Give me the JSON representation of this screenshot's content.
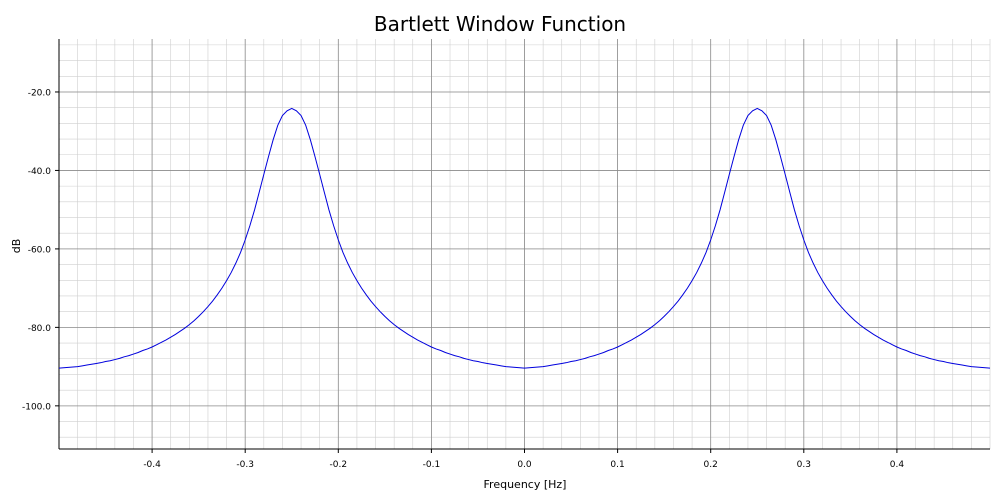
{
  "chart_data": {
    "type": "line",
    "title": "Bartlett Window Function",
    "xlabel": "Frequency [Hz]",
    "ylabel": "dB",
    "xlim": [
      -0.5,
      0.5
    ],
    "ylim": [
      -111,
      -6.5
    ],
    "xticks": [
      -0.4,
      -0.3,
      -0.2,
      -0.1,
      0.0,
      0.1,
      0.2,
      0.3,
      0.4
    ],
    "xtick_labels": [
      "-0.4",
      "-0.3",
      "-0.2",
      "-0.1",
      "0.0",
      "0.1",
      "0.2",
      "0.3",
      "0.4"
    ],
    "yticks": [
      -20,
      -40,
      -60,
      -80,
      -100
    ],
    "ytick_labels": [
      "-20.0",
      "-40.0",
      "-60.0",
      "-80.0",
      "-100.0"
    ],
    "grid": true,
    "minor_grid": true,
    "line_color": "#0000dd",
    "series": [
      {
        "x": [
          -0.5,
          -0.495,
          -0.49,
          -0.485,
          -0.48,
          -0.475,
          -0.47,
          -0.465,
          -0.46,
          -0.455,
          -0.45,
          -0.445,
          -0.44,
          -0.435,
          -0.43,
          -0.425,
          -0.42,
          -0.415,
          -0.41,
          -0.405,
          -0.4,
          -0.395,
          -0.39,
          -0.385,
          -0.38,
          -0.375,
          -0.37,
          -0.365,
          -0.36,
          -0.355,
          -0.35,
          -0.345,
          -0.34,
          -0.335,
          -0.33,
          -0.325,
          -0.32,
          -0.315,
          -0.31,
          -0.305,
          -0.3,
          -0.295,
          -0.29,
          -0.285,
          -0.28,
          -0.275,
          -0.27,
          -0.265,
          -0.26,
          -0.255,
          -0.25,
          -0.245,
          -0.24,
          -0.235,
          -0.23,
          -0.225,
          -0.22,
          -0.215,
          -0.21,
          -0.205,
          -0.2,
          -0.195,
          -0.19,
          -0.185,
          -0.18,
          -0.175,
          -0.17,
          -0.165,
          -0.16,
          -0.155,
          -0.15,
          -0.145,
          -0.14,
          -0.135,
          -0.13,
          -0.125,
          -0.12,
          -0.115,
          -0.11,
          -0.105,
          -0.1,
          -0.095,
          -0.09,
          -0.085,
          -0.08,
          -0.075,
          -0.07,
          -0.065,
          -0.06,
          -0.055,
          -0.05,
          -0.045,
          -0.04,
          -0.035,
          -0.03,
          -0.025,
          -0.02,
          -0.015,
          -0.01,
          -0.005,
          0.0,
          0.005,
          0.01,
          0.015,
          0.02,
          0.025,
          0.03,
          0.035,
          0.04,
          0.045,
          0.05,
          0.055,
          0.06,
          0.065,
          0.07,
          0.075,
          0.08,
          0.085,
          0.09,
          0.095,
          0.1,
          0.105,
          0.11,
          0.115,
          0.12,
          0.125,
          0.13,
          0.135,
          0.14,
          0.145,
          0.15,
          0.155,
          0.16,
          0.165,
          0.17,
          0.175,
          0.18,
          0.185,
          0.19,
          0.195,
          0.2,
          0.205,
          0.21,
          0.215,
          0.22,
          0.225,
          0.23,
          0.235,
          0.24,
          0.245,
          0.25,
          0.255,
          0.26,
          0.265,
          0.27,
          0.275,
          0.28,
          0.285,
          0.29,
          0.295,
          0.3,
          0.305,
          0.31,
          0.315,
          0.32,
          0.325,
          0.33,
          0.335,
          0.34,
          0.345,
          0.35,
          0.355,
          0.36,
          0.365,
          0.37,
          0.375,
          0.38,
          0.385,
          0.39,
          0.395,
          0.4,
          0.405,
          0.41,
          0.415,
          0.42,
          0.425,
          0.43,
          0.435,
          0.44,
          0.445,
          0.45,
          0.455,
          0.46,
          0.465,
          0.47,
          0.475,
          0.48,
          0.485,
          0.49,
          0.495,
          0.5
        ],
        "y": [
          -90.4,
          -90.3,
          -90.2,
          -90.1,
          -90,
          -89.8,
          -89.6,
          -89.4,
          -89.2,
          -89,
          -88.7,
          -88.5,
          -88.2,
          -87.9,
          -87.5,
          -87.2,
          -86.8,
          -86.4,
          -85.9,
          -85.5,
          -85,
          -84.4,
          -83.8,
          -83.2,
          -82.5,
          -81.8,
          -81,
          -80.2,
          -79.3,
          -78.3,
          -77.2,
          -76,
          -74.7,
          -73.3,
          -71.7,
          -70,
          -68.1,
          -66,
          -63.6,
          -60.9,
          -57.7,
          -54.1,
          -50.1,
          -45.6,
          -41,
          -36.5,
          -32.2,
          -28.5,
          -26,
          -24.8,
          -24.2,
          -24.8,
          -26,
          -28.5,
          -32.2,
          -36.5,
          -41,
          -45.6,
          -50.1,
          -54.1,
          -57.7,
          -60.9,
          -63.6,
          -66,
          -68.1,
          -70,
          -71.7,
          -73.3,
          -74.7,
          -76,
          -77.2,
          -78.3,
          -79.3,
          -80.2,
          -81,
          -81.8,
          -82.5,
          -83.2,
          -83.8,
          -84.4,
          -85,
          -85.5,
          -85.9,
          -86.4,
          -86.8,
          -87.2,
          -87.5,
          -87.9,
          -88.2,
          -88.5,
          -88.7,
          -89,
          -89.2,
          -89.4,
          -89.6,
          -89.8,
          -90,
          -90.1,
          -90.2,
          -90.3,
          -90.4,
          -90.3,
          -90.2,
          -90.1,
          -90,
          -89.8,
          -89.6,
          -89.4,
          -89.2,
          -89,
          -88.7,
          -88.5,
          -88.2,
          -87.9,
          -87.5,
          -87.2,
          -86.8,
          -86.4,
          -85.9,
          -85.5,
          -85,
          -84.4,
          -83.8,
          -83.2,
          -82.5,
          -81.8,
          -81,
          -80.2,
          -79.3,
          -78.3,
          -77.2,
          -76,
          -74.7,
          -73.3,
          -71.7,
          -70,
          -68.1,
          -66,
          -63.6,
          -60.9,
          -57.7,
          -54.1,
          -50.1,
          -45.6,
          -41,
          -36.5,
          -32.2,
          -28.5,
          -26,
          -24.8,
          -24.2,
          -24.8,
          -26,
          -28.5,
          -32.2,
          -36.5,
          -41,
          -45.6,
          -50.1,
          -54.1,
          -57.7,
          -60.9,
          -63.6,
          -66,
          -68.1,
          -70,
          -71.7,
          -73.3,
          -74.7,
          -76,
          -77.2,
          -78.3,
          -79.3,
          -80.2,
          -81,
          -81.8,
          -82.5,
          -83.2,
          -83.8,
          -84.4,
          -85,
          -85.5,
          -85.9,
          -86.4,
          -86.8,
          -87.2,
          -87.5,
          -87.9,
          -88.2,
          -88.5,
          -88.7,
          -89,
          -89.2,
          -89.4,
          -89.6,
          -89.8,
          -90,
          -90.1,
          -90.2,
          -90.3,
          -90.4
        ]
      }
    ]
  }
}
